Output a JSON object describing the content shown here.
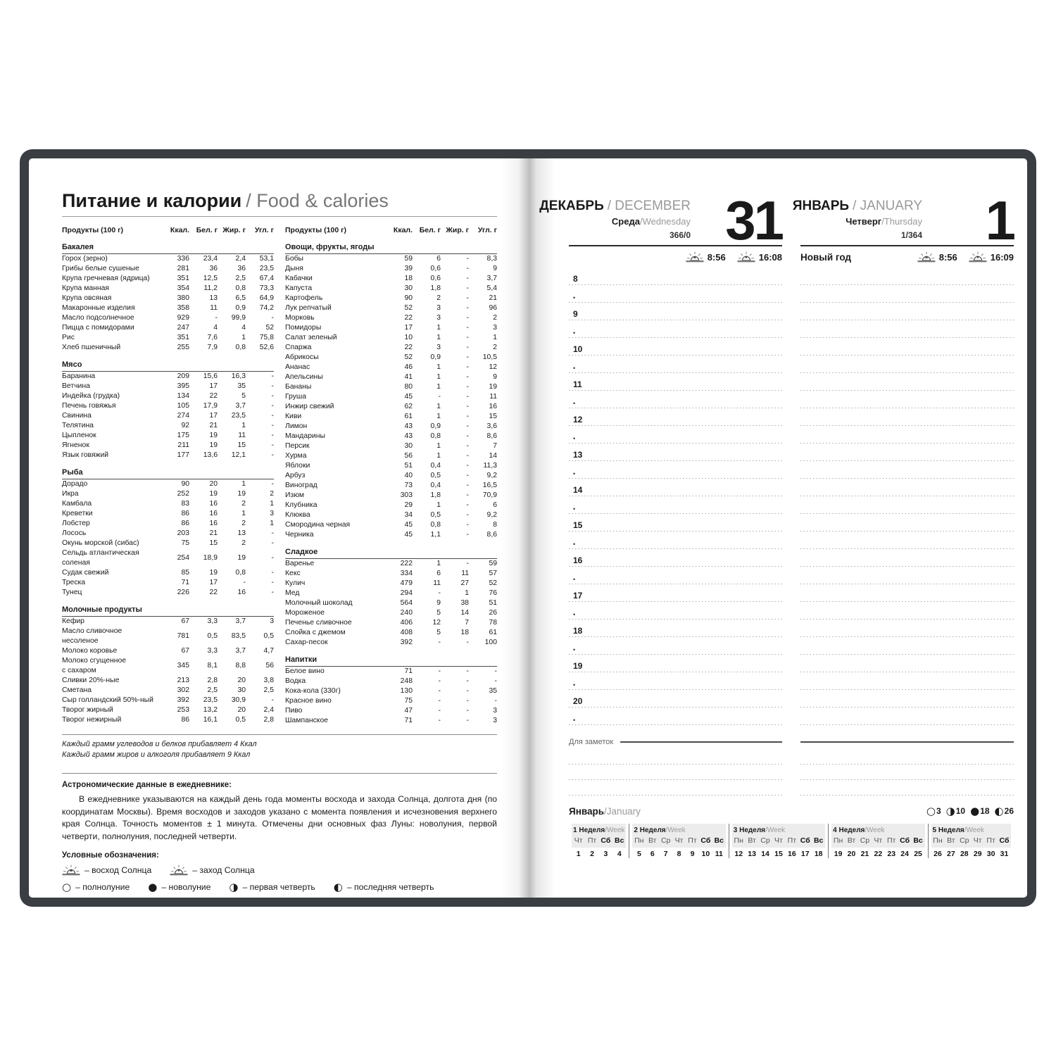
{
  "colors": {
    "cover": "#3a3d41",
    "text": "#1a1a1a",
    "muted_gray": "#999999",
    "dotted_line": "#a8a8a8",
    "calendar_bg": "#ececec"
  },
  "page_left": {
    "title_ru": "Питание и калории",
    "title_en": "/ Food & calories",
    "table_headers": {
      "product": "Продукты (100 г)",
      "kcal": "Ккал.",
      "protein": "Бел. г",
      "fat": "Жир. г",
      "carbs": "Угл. г"
    },
    "food_columns": [
      {
        "sections": [
          {
            "title": "Бакалея",
            "rows": [
              [
                "Горох (зерно)",
                "336",
                "23,4",
                "2,4",
                "53,1"
              ],
              [
                "Грибы белые сушеные",
                "281",
                "36",
                "36",
                "23,5"
              ],
              [
                "Крупа гречневая (ядрица)",
                "351",
                "12,5",
                "2,5",
                "67,4"
              ],
              [
                "Крупа манная",
                "354",
                "11,2",
                "0,8",
                "73,3"
              ],
              [
                "Крупа овсяная",
                "380",
                "13",
                "6,5",
                "64,9"
              ],
              [
                "Макаронные изделия",
                "358",
                "11",
                "0,9",
                "74,2"
              ],
              [
                "Масло подсолнечное",
                "929",
                "-",
                "99,9",
                "-"
              ],
              [
                "Пицца с помидорами",
                "247",
                "4",
                "4",
                "52"
              ],
              [
                "Рис",
                "351",
                "7,6",
                "1",
                "75,8"
              ],
              [
                "Хлеб пшеничный",
                "255",
                "7,9",
                "0,8",
                "52,6"
              ]
            ]
          },
          {
            "title": "Мясо",
            "rows": [
              [
                "Баранина",
                "209",
                "15,6",
                "16,3",
                "-"
              ],
              [
                "Ветчина",
                "395",
                "17",
                "35",
                "-"
              ],
              [
                "Индейка (грудка)",
                "134",
                "22",
                "5",
                "-"
              ],
              [
                "Печень говяжья",
                "105",
                "17,9",
                "3,7",
                "-"
              ],
              [
                "Свинина",
                "274",
                "17",
                "23,5",
                "-"
              ],
              [
                "Телятина",
                "92",
                "21",
                "1",
                "-"
              ],
              [
                "Цыпленок",
                "175",
                "19",
                "11",
                "-"
              ],
              [
                "Ягненок",
                "211",
                "19",
                "15",
                "-"
              ],
              [
                "Язык говяжий",
                "177",
                "13,6",
                "12,1",
                "-"
              ]
            ]
          },
          {
            "title": "Рыба",
            "rows": [
              [
                "Дорадо",
                "90",
                "20",
                "1",
                "-"
              ],
              [
                "Икра",
                "252",
                "19",
                "19",
                "2"
              ],
              [
                "Камбала",
                "83",
                "16",
                "2",
                "1"
              ],
              [
                "Креветки",
                "86",
                "16",
                "1",
                "3"
              ],
              [
                "Лобстер",
                "86",
                "16",
                "2",
                "1"
              ],
              [
                "Лосось",
                "203",
                "21",
                "13",
                "-"
              ],
              [
                "Окунь морской (сибас)",
                "75",
                "15",
                "2",
                "-"
              ],
              [
                "Сельдь атлантическая соленая",
                "254",
                "18,9",
                "19",
                "-"
              ],
              [
                "Судак свежий",
                "85",
                "19",
                "0,8",
                "-"
              ],
              [
                "Треска",
                "71",
                "17",
                "-",
                "-"
              ],
              [
                "Тунец",
                "226",
                "22",
                "16",
                "-"
              ]
            ]
          },
          {
            "title": "Молочные продукты",
            "rows": [
              [
                "Кефир",
                "67",
                "3,3",
                "3,7",
                "3"
              ],
              [
                "Масло сливочное несоленое",
                "781",
                "0,5",
                "83,5",
                "0,5"
              ],
              [
                "Молоко коровье",
                "67",
                "3,3",
                "3,7",
                "4,7"
              ],
              [
                "Молоко сгущенное\nс сахаром",
                "345",
                "8,1",
                "8,8",
                "56"
              ],
              [
                "Сливки 20%-ные",
                "213",
                "2,8",
                "20",
                "3,8"
              ],
              [
                "Сметана",
                "302",
                "2,5",
                "30",
                "2,5"
              ],
              [
                "Сыр голландский 50%-ный",
                "392",
                "23,5",
                "30,9",
                "-"
              ],
              [
                "Творог жирный",
                "253",
                "13,2",
                "20",
                "2,4"
              ],
              [
                "Творог нежирный",
                "86",
                "16,1",
                "0,5",
                "2,8"
              ]
            ]
          }
        ]
      },
      {
        "sections": [
          {
            "title": "Овощи, фрукты, ягоды",
            "rows": [
              [
                "Бобы",
                "59",
                "6",
                "-",
                "8,3"
              ],
              [
                "Дыня",
                "39",
                "0,6",
                "-",
                "9"
              ],
              [
                "Кабачки",
                "18",
                "0,6",
                "-",
                "3,7"
              ],
              [
                "Капуста",
                "30",
                "1,8",
                "-",
                "5,4"
              ],
              [
                "Картофель",
                "90",
                "2",
                "-",
                "21"
              ],
              [
                "Лук репчатый",
                "52",
                "3",
                "-",
                "96"
              ],
              [
                "Морковь",
                "22",
                "3",
                "-",
                "2"
              ],
              [
                "Помидоры",
                "17",
                "1",
                "-",
                "3"
              ],
              [
                "Салат зеленый",
                "10",
                "1",
                "-",
                "1"
              ],
              [
                "Спаржа",
                "22",
                "3",
                "-",
                "2"
              ],
              [
                "Абрикосы",
                "52",
                "0,9",
                "-",
                "10,5"
              ],
              [
                "Ананас",
                "46",
                "1",
                "-",
                "12"
              ],
              [
                "Апельсины",
                "41",
                "1",
                "-",
                "9"
              ],
              [
                "Бананы",
                "80",
                "1",
                "-",
                "19"
              ],
              [
                "Груша",
                "45",
                "-",
                "-",
                "11"
              ],
              [
                "Инжир свежий",
                "62",
                "1",
                "-",
                "16"
              ],
              [
                "Киви",
                "61",
                "1",
                "-",
                "15"
              ],
              [
                "Лимон",
                "43",
                "0,9",
                "-",
                "3,6"
              ],
              [
                "Мандарины",
                "43",
                "0,8",
                "-",
                "8,6"
              ],
              [
                "Персик",
                "30",
                "1",
                "-",
                "7"
              ],
              [
                "Хурма",
                "56",
                "1",
                "-",
                "14"
              ],
              [
                "Яблоки",
                "51",
                "0,4",
                "-",
                "11,3"
              ],
              [
                "Арбуз",
                "40",
                "0,5",
                "-",
                "9,2"
              ],
              [
                "Виноград",
                "73",
                "0,4",
                "-",
                "16,5"
              ],
              [
                "Изюм",
                "303",
                "1,8",
                "-",
                "70,9"
              ],
              [
                "Клубника",
                "29",
                "1",
                "-",
                "6"
              ],
              [
                "Клюква",
                "34",
                "0,5",
                "-",
                "9,2"
              ],
              [
                "Смородина черная",
                "45",
                "0,8",
                "-",
                "8"
              ],
              [
                "Черника",
                "45",
                "1,1",
                "-",
                "8,6"
              ]
            ]
          },
          {
            "title": "Сладкое",
            "rows": [
              [
                "Варенье",
                "222",
                "1",
                "-",
                "59"
              ],
              [
                "Кекс",
                "334",
                "6",
                "11",
                "57"
              ],
              [
                "Кулич",
                "479",
                "11",
                "27",
                "52"
              ],
              [
                "Мед",
                "294",
                "-",
                "1",
                "76"
              ],
              [
                "Молочный шоколад",
                "564",
                "9",
                "38",
                "51"
              ],
              [
                "Мороженое",
                "240",
                "5",
                "14",
                "26"
              ],
              [
                "Печенье сливочное",
                "406",
                "12",
                "7",
                "78"
              ],
              [
                "Слойка с джемом",
                "408",
                "5",
                "18",
                "61"
              ],
              [
                "Сахар-песок",
                "392",
                "-",
                "-",
                "100"
              ]
            ]
          },
          {
            "title": "Напитки",
            "rows": [
              [
                "Белое вино",
                "71",
                "-",
                "-",
                "-"
              ],
              [
                "Водка",
                "248",
                "-",
                "-",
                "-"
              ],
              [
                "Кока-кола (330г)",
                "130",
                "-",
                "-",
                "35"
              ],
              [
                "Красное вино",
                "75",
                "-",
                "-",
                "-"
              ],
              [
                "Пиво",
                "47",
                "-",
                "-",
                "3"
              ],
              [
                "Шампанское",
                "71",
                "-",
                "-",
                "3"
              ]
            ]
          }
        ]
      }
    ],
    "footnotes": [
      "Каждый грамм углеводов и белков прибавляет 4 Ккал",
      "Каждый грамм жиров и алкоголя прибавляет 9 Ккал"
    ],
    "astro_heading": "Астрономические данные в ежедневнике:",
    "astro_paragraph": "В ежедневнике указываются на каждый день года моменты восхода и захода Солнца, долгота дня (по координатам Москвы). Время восходов и заходов указано с момента появления и исчезновения верхнего края Солнца. Точность моментов ± 1 минута. Отмечены дни основных фаз Луны: новолуния, первой четверти, полнолуния, последней четверти.",
    "legend_heading": "Условные обозначения:",
    "legend_sun": [
      {
        "icon": "sunrise",
        "label": "– восход Солнца"
      },
      {
        "icon": "sunset",
        "label": "– заход Солнца"
      }
    ],
    "legend_moon": [
      {
        "symbol": "○",
        "label": "– полнолуние"
      },
      {
        "symbol": "●",
        "label": "– новолуние"
      },
      {
        "symbol": "◑",
        "label": "– первая четверть"
      },
      {
        "symbol": "◐",
        "label": "– последняя четверть"
      }
    ]
  },
  "page_right": {
    "days": [
      {
        "month_ru": "ДЕКАБРЬ",
        "month_en": "/ DECEMBER",
        "weekday_ru": "Среда",
        "weekday_en": "/Wednesday",
        "counter": "366/0",
        "big": "31",
        "holiday": "",
        "sunrise": "8:56",
        "sunset": "16:08"
      },
      {
        "month_ru": "ЯНВАРЬ",
        "month_en": "/ JANUARY",
        "weekday_ru": "Четверг",
        "weekday_en": "/Thursday",
        "counter": "1/364",
        "big": "1",
        "holiday": "Новый год",
        "sunrise": "8:56",
        "sunset": "16:09"
      }
    ],
    "hours": [
      "8",
      "9",
      "10",
      "11",
      "12",
      "13",
      "14",
      "15",
      "16",
      "17",
      "18",
      "19",
      "20"
    ],
    "notes_label": "Для заметок",
    "notes_dotted_lines": 3,
    "footer_month_ru": "Январь",
    "footer_month_en": "/January",
    "moon_phases": [
      {
        "symbol": "○",
        "day": "3"
      },
      {
        "symbol": "◑",
        "day": "10"
      },
      {
        "symbol": "●",
        "day": "18"
      },
      {
        "symbol": "◐",
        "day": "26"
      }
    ],
    "mini_calendar": [
      {
        "num": "1",
        "label_ru": " Неделя",
        "label_en": "/Week",
        "day_names": [
          "Чт",
          "Пт",
          "Сб",
          "Вс"
        ],
        "dates": [
          "1",
          "2",
          "3",
          "4"
        ]
      },
      {
        "num": "2",
        "label_ru": " Неделя",
        "label_en": "/Week",
        "day_names": [
          "Пн",
          "Вт",
          "Ср",
          "Чт",
          "Пт",
          "Сб",
          "Вс"
        ],
        "dates": [
          "5",
          "6",
          "7",
          "8",
          "9",
          "10",
          "11"
        ]
      },
      {
        "num": "3",
        "label_ru": " Неделя",
        "label_en": "/Week",
        "day_names": [
          "Пн",
          "Вт",
          "Ср",
          "Чт",
          "Пт",
          "Сб",
          "Вс"
        ],
        "dates": [
          "12",
          "13",
          "14",
          "15",
          "16",
          "17",
          "18"
        ]
      },
      {
        "num": "4",
        "label_ru": " Неделя",
        "label_en": "/Week",
        "day_names": [
          "Пн",
          "Вт",
          "Ср",
          "Чт",
          "Пт",
          "Сб",
          "Вс"
        ],
        "dates": [
          "19",
          "20",
          "21",
          "22",
          "23",
          "24",
          "25"
        ]
      },
      {
        "num": "5",
        "label_ru": " Неделя",
        "label_en": "/Week",
        "day_names": [
          "Пн",
          "Вт",
          "Ср",
          "Чт",
          "Пт",
          "Сб"
        ],
        "dates": [
          "26",
          "27",
          "28",
          "29",
          "30",
          "31"
        ]
      }
    ]
  }
}
